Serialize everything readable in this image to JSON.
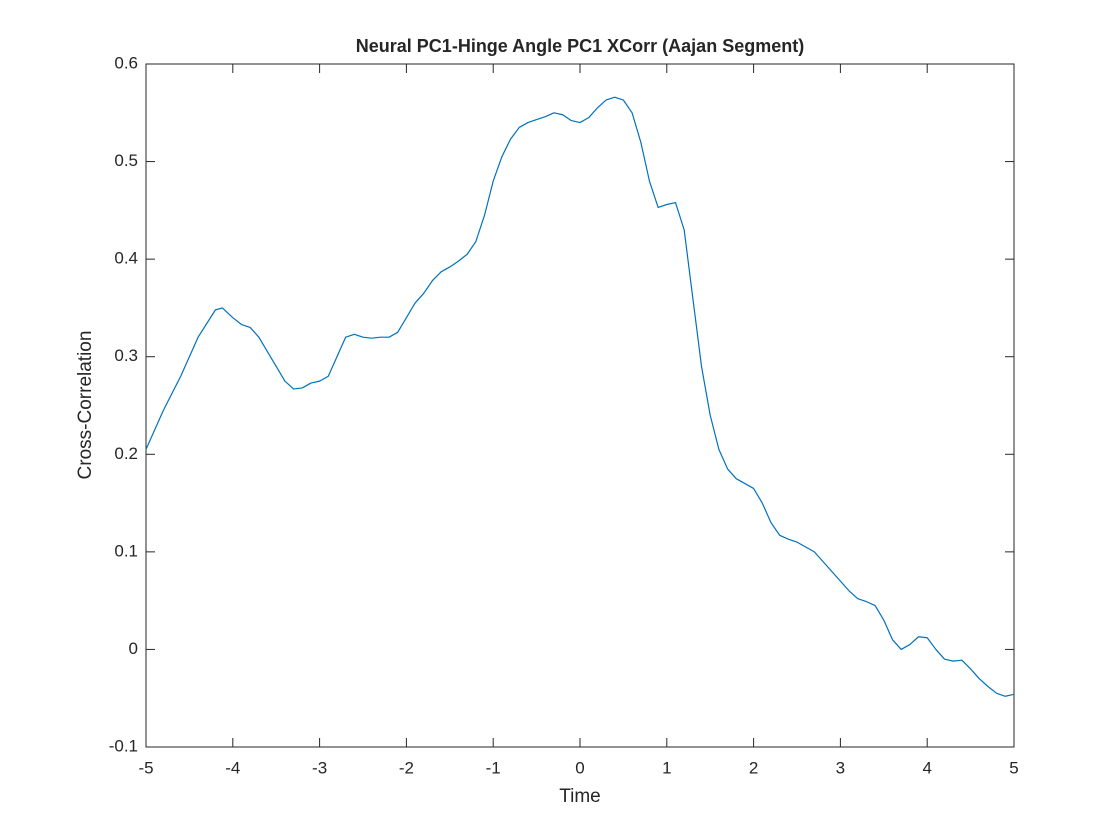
{
  "chart_data": {
    "type": "line",
    "title": "Neural PC1-Hinge Angle PC1 XCorr (Aajan Segment)",
    "x_label": "Time",
    "y_label": "Cross-Correlation",
    "x": [
      -5,
      -4.8,
      -4.6,
      -4.4,
      -4.2,
      -4.12,
      -4,
      -3.9,
      -3.8,
      -3.7,
      -3.6,
      -3.5,
      -3.4,
      -3.3,
      -3.2,
      -3.1,
      -3,
      -2.9,
      -2.8,
      -2.7,
      -2.6,
      -2.5,
      -2.4,
      -2.3,
      -2.2,
      -2.1,
      -2,
      -1.9,
      -1.8,
      -1.7,
      -1.6,
      -1.5,
      -1.4,
      -1.3,
      -1.2,
      -1.1,
      -1,
      -0.9,
      -0.8,
      -0.7,
      -0.6,
      -0.5,
      -0.4,
      -0.3,
      -0.2,
      -0.1,
      0,
      0.1,
      0.2,
      0.3,
      0.4,
      0.5,
      0.6,
      0.7,
      0.8,
      0.9,
      1,
      1.1,
      1.2,
      1.3,
      1.4,
      1.5,
      1.6,
      1.7,
      1.8,
      1.9,
      2,
      2.1,
      2.2,
      2.3,
      2.4,
      2.5,
      2.6,
      2.7,
      2.8,
      2.9,
      3,
      3.1,
      3.2,
      3.3,
      3.4,
      3.5,
      3.6,
      3.7,
      3.8,
      3.9,
      4,
      4.1,
      4.2,
      4.3,
      4.4,
      4.5,
      4.6,
      4.7,
      4.8,
      4.9,
      5
    ],
    "series": [
      {
        "name": "Cross-Correlation",
        "color": "#0072bd",
        "values": [
          0.205,
          0.245,
          0.28,
          0.32,
          0.348,
          0.35,
          0.34,
          0.333,
          0.33,
          0.32,
          0.305,
          0.29,
          0.275,
          0.267,
          0.268,
          0.273,
          0.275,
          0.28,
          0.3,
          0.32,
          0.323,
          0.32,
          0.319,
          0.32,
          0.32,
          0.325,
          0.34,
          0.355,
          0.365,
          0.378,
          0.387,
          0.392,
          0.398,
          0.405,
          0.418,
          0.445,
          0.48,
          0.505,
          0.523,
          0.535,
          0.54,
          0.543,
          0.546,
          0.55,
          0.548,
          0.542,
          0.54,
          0.545,
          0.555,
          0.563,
          0.566,
          0.563,
          0.55,
          0.52,
          0.48,
          0.453,
          0.456,
          0.458,
          0.43,
          0.36,
          0.29,
          0.24,
          0.205,
          0.185,
          0.175,
          0.17,
          0.165,
          0.15,
          0.13,
          0.117,
          0.113,
          0.11,
          0.105,
          0.1,
          0.09,
          0.08,
          0.07,
          0.06,
          0.052,
          0.049,
          0.045,
          0.03,
          0.01,
          0,
          0.005,
          0.013,
          0.012,
          0,
          -0.01,
          -0.012,
          -0.011,
          -0.02,
          -0.03,
          -0.038,
          -0.045,
          -0.048,
          -0.046
        ]
      }
    ],
    "xlim": [
      -5,
      5
    ],
    "xticks": [
      -5,
      -4,
      -3,
      -2,
      -1,
      0,
      1,
      2,
      3,
      4,
      5
    ],
    "ylim": [
      -0.1,
      0.6
    ],
    "yticks": [
      -0.1,
      0,
      0.1,
      0.2,
      0.3,
      0.4,
      0.5,
      0.6
    ]
  }
}
